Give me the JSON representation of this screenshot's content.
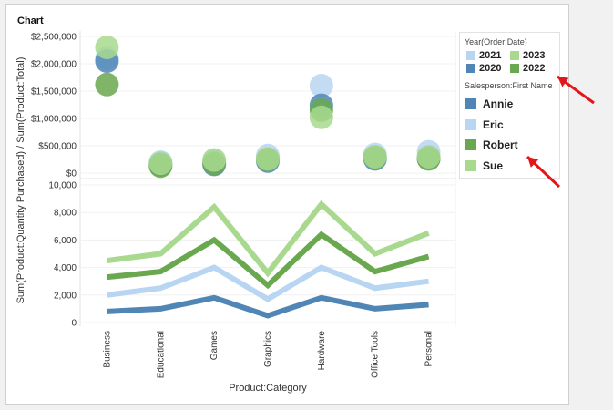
{
  "chart_data": {
    "title": "Chart",
    "type": "combo-scatter-line",
    "categories": [
      "Business",
      "Educational",
      "Games",
      "Graphics",
      "Hardware",
      "Office Tools",
      "Personal"
    ],
    "ylabel": "Sum(Product:Quantity Purchased) / Sum(Product:Total)",
    "xlabel": "Product:Category",
    "top_panel": {
      "type": "scatter",
      "measure": "Sum(Product:Total)",
      "ylim": [
        0,
        2500000
      ],
      "ticks": [
        0,
        500000,
        1000000,
        1500000,
        2000000,
        2500000
      ],
      "tick_labels": [
        "$0",
        "$500,000",
        "$1,000,000",
        "$1,500,000",
        "$2,000,000",
        "$2,500,000"
      ],
      "color_legend_title": "Year(Order:Date)",
      "series": [
        {
          "name": "2021",
          "color": "#b8d6f2",
          "values": [
            2100000,
            200000,
            230000,
            320000,
            1600000,
            340000,
            390000
          ]
        },
        {
          "name": "2020",
          "color": "#4f86b6",
          "values": [
            2050000,
            150000,
            160000,
            220000,
            1240000,
            260000,
            270000
          ]
        },
        {
          "name": "2022",
          "color": "#6aa84f",
          "values": [
            1620000,
            130000,
            180000,
            250000,
            1150000,
            290000,
            260000
          ]
        },
        {
          "name": "2023",
          "color": "#a8d98e",
          "values": [
            2300000,
            180000,
            240000,
            260000,
            1020000,
            300000,
            300000
          ]
        }
      ]
    },
    "bottom_panel": {
      "type": "line",
      "measure": "Sum(Product:Quantity Purchased)",
      "ylim": [
        0,
        10000
      ],
      "ticks": [
        0,
        2000,
        4000,
        6000,
        8000,
        10000
      ],
      "tick_labels": [
        "0",
        "2,000",
        "4,000",
        "6,000",
        "8,000",
        "10,000"
      ],
      "color_legend_title": "Salesperson:First Name",
      "series": [
        {
          "name": "Annie",
          "color": "#4f86b6",
          "values": [
            800,
            1000,
            1800,
            500,
            1800,
            1000,
            1300
          ]
        },
        {
          "name": "Eric",
          "color": "#b8d6f2",
          "values": [
            2000,
            2500,
            4000,
            1700,
            4000,
            2500,
            3000
          ]
        },
        {
          "name": "Robert",
          "color": "#6aa84f",
          "values": [
            3300,
            3700,
            6000,
            2700,
            6400,
            3700,
            4800
          ]
        },
        {
          "name": "Sue",
          "color": "#a8d98e",
          "values": [
            4500,
            5000,
            8400,
            3600,
            8600,
            5000,
            6500
          ]
        }
      ]
    },
    "legend_years": [
      {
        "label": "2021",
        "color": "#b8d6f2"
      },
      {
        "label": "2023",
        "color": "#a8d98e"
      },
      {
        "label": "2020",
        "color": "#4f86b6"
      },
      {
        "label": "2022",
        "color": "#6aa84f"
      }
    ],
    "legend_people": [
      {
        "label": "Annie",
        "color": "#4f86b6"
      },
      {
        "label": "Eric",
        "color": "#b8d6f2"
      },
      {
        "label": "Robert",
        "color": "#6aa84f"
      },
      {
        "label": "Sue",
        "color": "#a8d98e"
      }
    ],
    "annotation_color": "#e3161b"
  }
}
